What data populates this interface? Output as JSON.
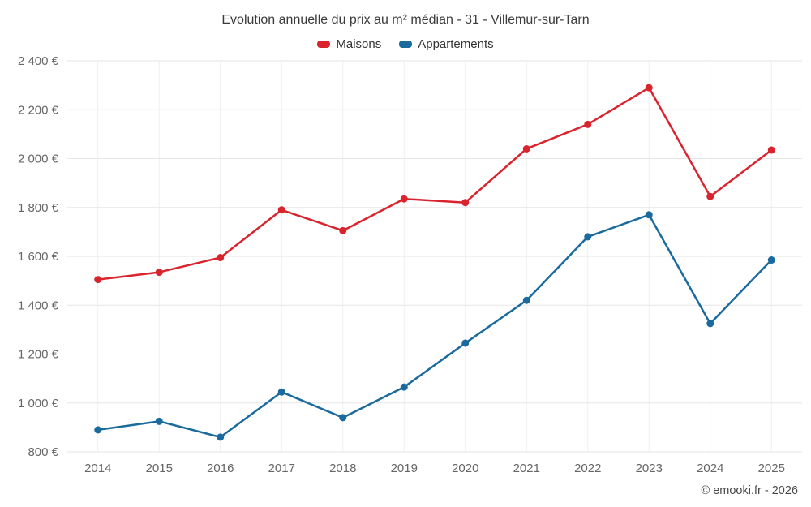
{
  "chart_data": {
    "type": "line",
    "title": "Evolution annuelle du prix au m² médian - 31 - Villemur-sur-Tarn",
    "credits": "© emooki.fr - 2026",
    "categories": [
      "2014",
      "2015",
      "2016",
      "2017",
      "2018",
      "2019",
      "2020",
      "2021",
      "2022",
      "2023",
      "2024",
      "2025"
    ],
    "series": [
      {
        "name": "Maisons",
        "color": "#d9242e",
        "values": [
          1505,
          1535,
          1595,
          1790,
          1705,
          1835,
          1820,
          2040,
          2140,
          2290,
          1845,
          2035
        ]
      },
      {
        "name": "Appartements",
        "color": "#1a6a9e",
        "values": [
          890,
          925,
          860,
          1045,
          940,
          1065,
          1245,
          1420,
          1680,
          1770,
          1325,
          1585
        ]
      }
    ],
    "xlabel": "",
    "ylabel": "",
    "ylim": [
      800,
      2400
    ],
    "ytick_step": 200,
    "ytick_suffix": " €",
    "grid": true,
    "legend_position": "top"
  }
}
